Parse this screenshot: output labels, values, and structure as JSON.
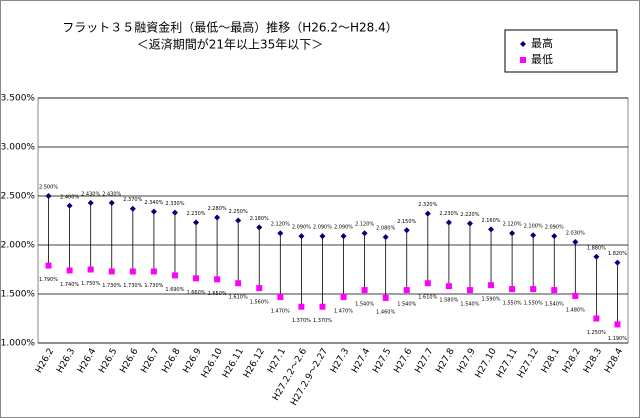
{
  "chart_data": {
    "type": "dropline",
    "title": "フラット３５融資金利（最低～最高）推移（H26.2～H28.4）",
    "subtitle": "＜返済期間が21年以上35年以下＞",
    "categories": [
      "H26.2",
      "H26.3",
      "H26.4",
      "H26.5",
      "H26.6",
      "H26.7",
      "H26.8",
      "H26.9",
      "H26.10",
      "H26.11",
      "H26.12",
      "H27.1",
      "H27.2.2～2.6",
      "H27.2.9～2.27",
      "H27.3",
      "H27.4",
      "H27.5",
      "H27.6",
      "H27.7",
      "H27.8",
      "H27.9",
      "H27.10",
      "H27.11",
      "H27.12",
      "H28.1",
      "H28.2",
      "H28.3",
      "H28.4"
    ],
    "series": [
      {
        "name": "最高",
        "color": "#000080",
        "marker": "diamond",
        "values": [
          2.5,
          2.4,
          2.43,
          2.43,
          2.37,
          2.34,
          2.33,
          2.23,
          2.28,
          2.25,
          2.18,
          2.12,
          2.09,
          2.09,
          2.09,
          2.12,
          2.08,
          2.15,
          2.32,
          2.23,
          2.22,
          2.16,
          2.12,
          2.1,
          2.09,
          2.03,
          1.88,
          1.82
        ],
        "value_labels": [
          "2.500%",
          "2.400%",
          "2.430%",
          "2.430%",
          "2.370%",
          "2.340%",
          "2.330%",
          "2.230%",
          "2.280%",
          "2.250%",
          "2.180%",
          "2.120%",
          "2.090%",
          "2.090%",
          "2.090%",
          "2.120%",
          "2.080%",
          "2.150%",
          "2.320%",
          "2.230%",
          "2.220%",
          "2.160%",
          "2.120%",
          "2.100%",
          "2.090%",
          "2.030%",
          "1.880%",
          "1.820%"
        ]
      },
      {
        "name": "最低",
        "color": "#ff00ff",
        "marker": "square",
        "values": [
          1.79,
          1.74,
          1.75,
          1.73,
          1.73,
          1.73,
          1.69,
          1.66,
          1.65,
          1.61,
          1.56,
          1.47,
          1.37,
          1.37,
          1.47,
          1.54,
          1.46,
          1.54,
          1.61,
          1.58,
          1.54,
          1.59,
          1.55,
          1.55,
          1.54,
          1.48,
          1.25,
          1.19
        ],
        "value_labels": [
          "1.790%",
          "1.740%",
          "1.750%",
          "1.730%",
          "1.730%",
          "1.730%",
          "1.690%",
          "1.660%",
          "1.650%",
          "1.610%",
          "1.560%",
          "1.470%",
          "1.370%",
          "1.370%",
          "1.470%",
          "1.540%",
          "1.460%",
          "1.540%",
          "1.610%",
          "1.580%",
          "1.540%",
          "1.590%",
          "1.550%",
          "1.550%",
          "1.540%",
          "1.480%",
          "1.250%",
          "1.190%"
        ]
      }
    ],
    "ylim": [
      1,
      3.5
    ],
    "yticks": [
      {
        "value": 1,
        "label": "1.000%"
      },
      {
        "value": 1.5,
        "label": "1.500%"
      },
      {
        "value": 2,
        "label": "2.000%"
      },
      {
        "value": 2.5,
        "label": "2.500%"
      },
      {
        "value": 3,
        "label": "3.000%"
      },
      {
        "value": 3.5,
        "label": "3.500%"
      }
    ],
    "grid": true
  }
}
